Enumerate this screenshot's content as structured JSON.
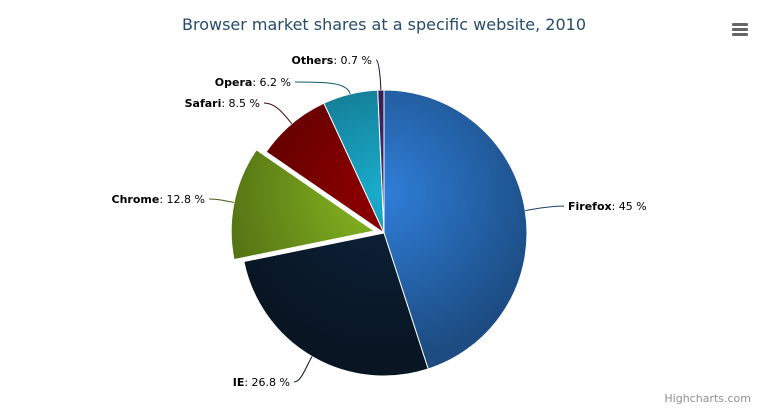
{
  "chart_data": {
    "type": "pie",
    "title": "Browser market shares at a specific website, 2010",
    "unit": "%",
    "slices": [
      {
        "name": "Firefox",
        "value": 45.0,
        "color": "#2f7ed8"
      },
      {
        "name": "IE",
        "value": 26.8,
        "color": "#0d233a"
      },
      {
        "name": "Chrome",
        "value": 12.8,
        "color": "#8bbc21",
        "sliced": true
      },
      {
        "name": "Safari",
        "value": 8.5,
        "color": "#910000"
      },
      {
        "name": "Opera",
        "value": 6.2,
        "color": "#1aadce"
      },
      {
        "name": "Others",
        "value": 0.7,
        "color": "#492970"
      }
    ],
    "labels": [
      "45 %",
      "26.8 %",
      "12.8 %",
      "8.5 %",
      "6.2 %",
      "0.7 %"
    ]
  },
  "credits": "Highcharts.com",
  "menu_icon": "hamburger-menu-icon"
}
